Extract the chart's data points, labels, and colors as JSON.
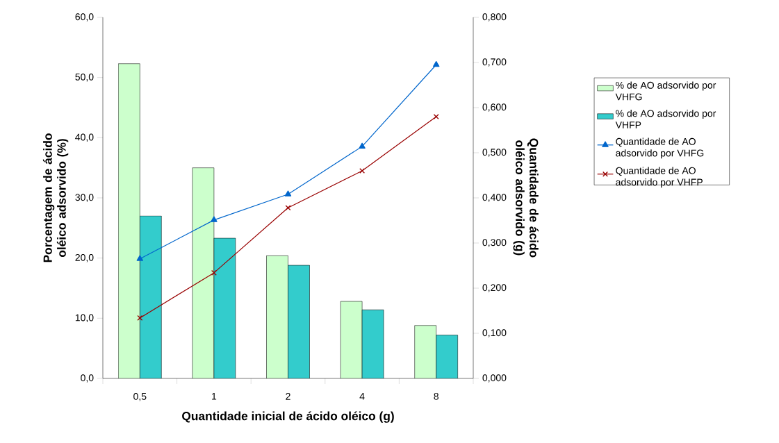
{
  "chart_data": {
    "type": "bar",
    "xlabel": "Quantidade inicial de ácido oléico (g)",
    "ylabel": "Porcentagem de ácido oléico adsorvido (%)",
    "y2label": "Quantidade de ácido oléico adsorvido (g)",
    "categories": [
      "0,5",
      "1",
      "2",
      "4",
      "8"
    ],
    "ylim": [
      0,
      60
    ],
    "yticks": [
      {
        "value": 0,
        "label": "0,0"
      },
      {
        "value": 10,
        "label": "10,0"
      },
      {
        "value": 20,
        "label": "20,0"
      },
      {
        "value": 30,
        "label": "30,0"
      },
      {
        "value": 40,
        "label": "40,0"
      },
      {
        "value": 50,
        "label": "50,0"
      },
      {
        "value": 60,
        "label": "60,0"
      }
    ],
    "y2lim": [
      0,
      0.8
    ],
    "y2ticks": [
      {
        "value": 0,
        "label": "0,000"
      },
      {
        "value": 0.1,
        "label": "0,100"
      },
      {
        "value": 0.2,
        "label": "0,200"
      },
      {
        "value": 0.3,
        "label": "0,300"
      },
      {
        "value": 0.4,
        "label": "0,400"
      },
      {
        "value": 0.5,
        "label": "0,500"
      },
      {
        "value": 0.6,
        "label": "0,600"
      },
      {
        "value": 0.7,
        "label": "0,700"
      },
      {
        "value": 0.8,
        "label": "0,800"
      }
    ],
    "legend": "right",
    "series": [
      {
        "name": "% de AO adsorvido por VHFG",
        "color": "#ccffcc",
        "values": [
          52.3,
          35.0,
          20.4,
          12.8,
          8.8
        ]
      },
      {
        "name": "% de AO adsorvido por VHFP",
        "color": "#33cccc",
        "values": [
          27.0,
          23.3,
          18.8,
          11.4,
          7.2
        ]
      },
      {
        "name": "Quantidade de AO adsorvido por VHFG",
        "type": "line",
        "axis": "y2",
        "marker": "triangle",
        "line_style": "solid",
        "color": "#0066cc",
        "values": [
          0.265,
          0.351,
          0.408,
          0.514,
          0.695
        ]
      },
      {
        "name": "Quantidade de AO adsorvido por VHFP",
        "type": "line",
        "axis": "y2",
        "marker": "cross",
        "line_style": "solid",
        "color": "#990000",
        "values": [
          0.134,
          0.234,
          0.378,
          0.46,
          0.58
        ]
      }
    ]
  }
}
